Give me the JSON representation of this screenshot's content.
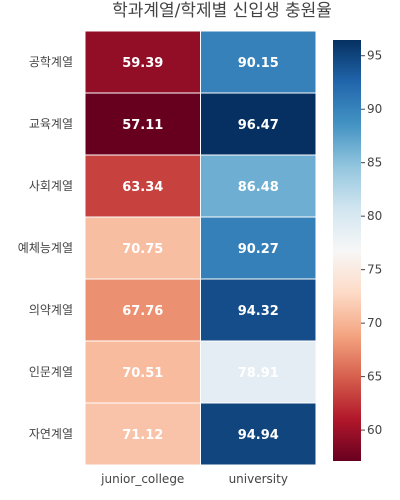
{
  "chart_data": {
    "type": "heatmap",
    "title": "학과계열/학제별 신입생 충원율",
    "x": [
      "junior_college",
      "university"
    ],
    "y": [
      "공학계열",
      "교육계열",
      "사회계열",
      "예체능계열",
      "의약계열",
      "인문계열",
      "자연계열"
    ],
    "z": [
      [
        59.39,
        90.15
      ],
      [
        57.11,
        96.47
      ],
      [
        63.34,
        86.48
      ],
      [
        70.75,
        90.27
      ],
      [
        67.76,
        94.32
      ],
      [
        70.51,
        78.91
      ],
      [
        71.12,
        94.94
      ]
    ],
    "z_labels": [
      [
        "59.39",
        "90.15"
      ],
      [
        "57.11",
        "96.47"
      ],
      [
        "63.34",
        "86.48"
      ],
      [
        "70.75",
        "90.27"
      ],
      [
        "67.76",
        "94.32"
      ],
      [
        "70.51",
        "78.91"
      ],
      [
        "71.12",
        "94.94"
      ]
    ],
    "zlim": [
      57.11,
      96.47
    ],
    "colorscale": "RdBu",
    "colorbar_ticks": [
      "60",
      "65",
      "70",
      "75",
      "80",
      "85",
      "90",
      "95"
    ],
    "colorbar_tick_values": [
      60,
      65,
      70,
      75,
      80,
      85,
      90,
      95
    ]
  }
}
